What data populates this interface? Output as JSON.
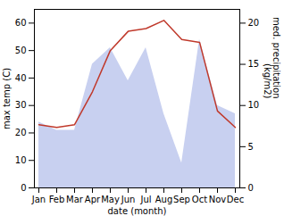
{
  "chart_data": {
    "type": "line",
    "xlabel": "date (month)",
    "ylabel": "max temp (C)",
    "y2label": "med. precipitation\n(kg/m2)",
    "categories": [
      "Jan",
      "Feb",
      "Mar",
      "Apr",
      "May",
      "Jun",
      "Jul",
      "Aug",
      "Sep",
      "Oct",
      "Nov",
      "Dec"
    ],
    "series": [
      {
        "type": "area",
        "axis": "y2",
        "color": "#c8d0f0",
        "values": [
          8,
          7,
          7,
          15,
          17,
          13,
          17,
          9,
          3,
          18,
          10,
          9
        ]
      },
      {
        "type": "line",
        "color": "#c0392b",
        "values": [
          23,
          22,
          23,
          35,
          50,
          57,
          58,
          61,
          54,
          53,
          28,
          22
        ]
      }
    ],
    "ylim": [
      0,
      65
    ],
    "yticks": [
      0,
      10,
      20,
      30,
      40,
      50,
      60
    ],
    "y2lim": [
      0,
      21.67
    ],
    "y2ticks": [
      0,
      5,
      10,
      15,
      20
    ],
    "grid": false
  }
}
